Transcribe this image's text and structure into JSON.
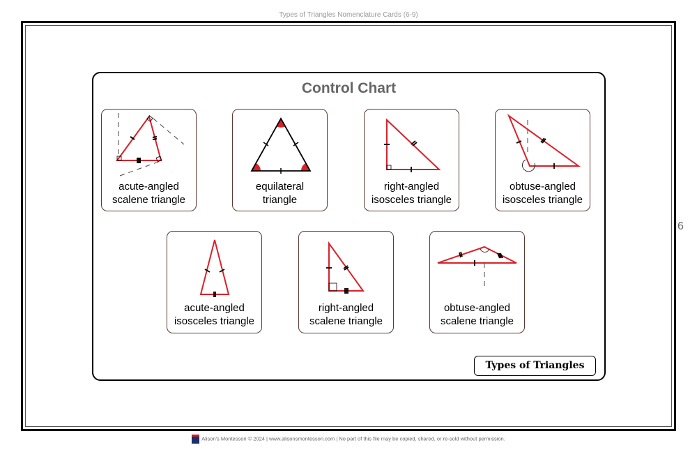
{
  "header": "Types of Triangles Nomenclature Cards (6-9)",
  "page_number": "6",
  "panel": {
    "title": "Control Chart",
    "cards": [
      {
        "line1": "acute-angled",
        "line2": "scalene triangle"
      },
      {
        "line1": "equilateral",
        "line2": "triangle"
      },
      {
        "line1": "right-angled",
        "line2": "isosceles triangle"
      },
      {
        "line1": "obtuse-angled",
        "line2": "isosceles triangle"
      },
      {
        "line1": "acute-angled",
        "line2": "isosceles triangle"
      },
      {
        "line1": "right-angled",
        "line2": "scalene triangle"
      },
      {
        "line1": "obtuse-angled",
        "line2": "scalene triangle"
      }
    ],
    "tag": "Types of Triangles"
  },
  "footer": "Alison's Montessori © 2024 | www.alisonsmontessori.com | No part of this file may be copied, shared, or re-sold without permission.",
  "colors": {
    "triangle": "#d8222a",
    "card_border": "#5a3a32",
    "title": "#666666"
  }
}
